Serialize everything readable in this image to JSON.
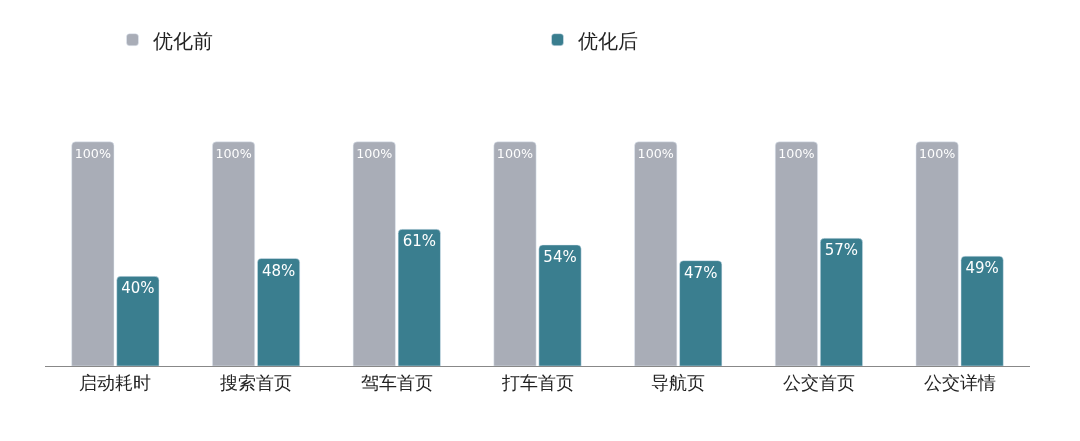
{
  "chart_data": {
    "type": "bar",
    "categories": [
      "启动耗时",
      "搜索首页",
      "驾车首页",
      "打车首页",
      "导航页",
      "公交首页",
      "公交详情"
    ],
    "series": [
      {
        "name": "优化前",
        "color": "#a9adb7",
        "values": [
          100,
          100,
          100,
          100,
          100,
          100,
          100
        ],
        "value_labels": [
          "100%",
          "100%",
          "100%",
          "100%",
          "100%",
          "100%",
          "100%"
        ]
      },
      {
        "name": "优化后",
        "color": "#3a7e8f",
        "values": [
          40,
          48,
          61,
          54,
          47,
          57,
          49
        ],
        "value_labels": [
          "40%",
          "48%",
          "61%",
          "54%",
          "47%",
          "57%",
          "49%"
        ]
      }
    ],
    "legend": "top"
  }
}
